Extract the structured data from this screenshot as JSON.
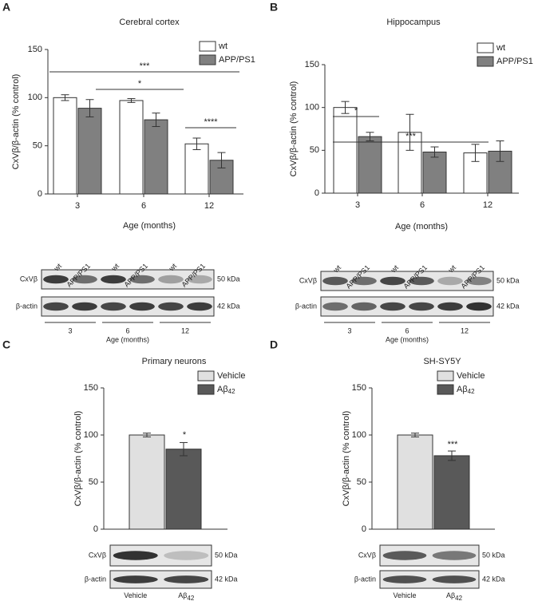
{
  "chart_data": [
    {
      "type": "bar",
      "panel": "A",
      "title": "Cerebral cortex",
      "xlabel": "Age (months)",
      "ylabel": "CxVβ/β-actin (% control)",
      "categories": [
        "3",
        "6",
        "12"
      ],
      "series": [
        {
          "name": "wt",
          "color": "#ffffff",
          "values": [
            100,
            97,
            52
          ],
          "errors": [
            3,
            2,
            6
          ]
        },
        {
          "name": "APP/PS1",
          "color": "#808080",
          "values": [
            89,
            77,
            35
          ],
          "errors": [
            9,
            7,
            8
          ]
        }
      ],
      "ylim": [
        0,
        150
      ],
      "yticks": [
        0,
        50,
        100,
        150
      ],
      "annotations": [
        "***",
        "*",
        "****"
      ],
      "blot": {
        "lanes": [
          "wt",
          "APP/PS1",
          "wt",
          "APP/PS1",
          "wt",
          "APP/PS1"
        ],
        "rows": [
          "CxVβ",
          "β-actin"
        ],
        "sizes": [
          "50 kDa",
          "42 kDa"
        ],
        "groups": [
          "3",
          "6",
          "12"
        ],
        "xlabel": "Age (months)"
      }
    },
    {
      "type": "bar",
      "panel": "B",
      "title": "Hippocampus",
      "xlabel": "Age (months)",
      "ylabel": "CxVβ/β-actin (% control)",
      "categories": [
        "3",
        "6",
        "12"
      ],
      "series": [
        {
          "name": "wt",
          "color": "#ffffff",
          "values": [
            100,
            71,
            47
          ],
          "errors": [
            7,
            21,
            10
          ]
        },
        {
          "name": "APP/PS1",
          "color": "#808080",
          "values": [
            66,
            48,
            49
          ],
          "errors": [
            5,
            6,
            12
          ]
        }
      ],
      "ylim": [
        0,
        150
      ],
      "yticks": [
        0,
        50,
        100,
        150
      ],
      "annotations": [
        "*",
        "***"
      ],
      "blot": {
        "lanes": [
          "wt",
          "APP/PS1",
          "wt",
          "APP/PS1",
          "wt",
          "APP/PS1"
        ],
        "rows": [
          "CxVβ",
          "β-actin"
        ],
        "sizes": [
          "50 kDa",
          "42 kDa"
        ],
        "groups": [
          "3",
          "6",
          "12"
        ],
        "xlabel": "Age (months)"
      }
    },
    {
      "type": "bar",
      "panel": "C",
      "title": "Primary neurons",
      "ylabel": "CxVβ/β-actin (% control)",
      "categories": [
        null
      ],
      "series": [
        {
          "name": "Vehicle",
          "color": "#e0e0e0",
          "values": [
            100
          ],
          "errors": [
            2
          ]
        },
        {
          "name": "Aβ",
          "sub": "42",
          "color": "#595959",
          "values": [
            85
          ],
          "errors": [
            7
          ]
        }
      ],
      "ylim": [
        0,
        150
      ],
      "yticks": [
        0,
        50,
        100,
        150
      ],
      "annotations": [
        "*"
      ],
      "blot": {
        "lanes": [
          {
            "text": "Vehicle"
          },
          {
            "text": "Aβ",
            "sub": "42"
          }
        ],
        "rows": [
          "CxVβ",
          "β-actin"
        ],
        "sizes": [
          "50 kDa",
          "42 kDa"
        ]
      }
    },
    {
      "type": "bar",
      "panel": "D",
      "title": "SH-SY5Y",
      "ylabel": "CxVβ/β-actin (% control)",
      "categories": [
        null
      ],
      "series": [
        {
          "name": "Vehicle",
          "color": "#e0e0e0",
          "values": [
            100
          ],
          "errors": [
            2
          ]
        },
        {
          "name": "Aβ",
          "sub": "42",
          "color": "#595959",
          "values": [
            78
          ],
          "errors": [
            5
          ]
        }
      ],
      "ylim": [
        0,
        150
      ],
      "yticks": [
        0,
        50,
        100,
        150
      ],
      "annotations": [
        "***"
      ],
      "blot": {
        "lanes": [
          {
            "text": "Vehicle"
          },
          {
            "text": "Aβ",
            "sub": "42"
          }
        ],
        "rows": [
          "CxVβ",
          "β-actin"
        ],
        "sizes": [
          "50 kDa",
          "42 kDa"
        ]
      }
    }
  ]
}
